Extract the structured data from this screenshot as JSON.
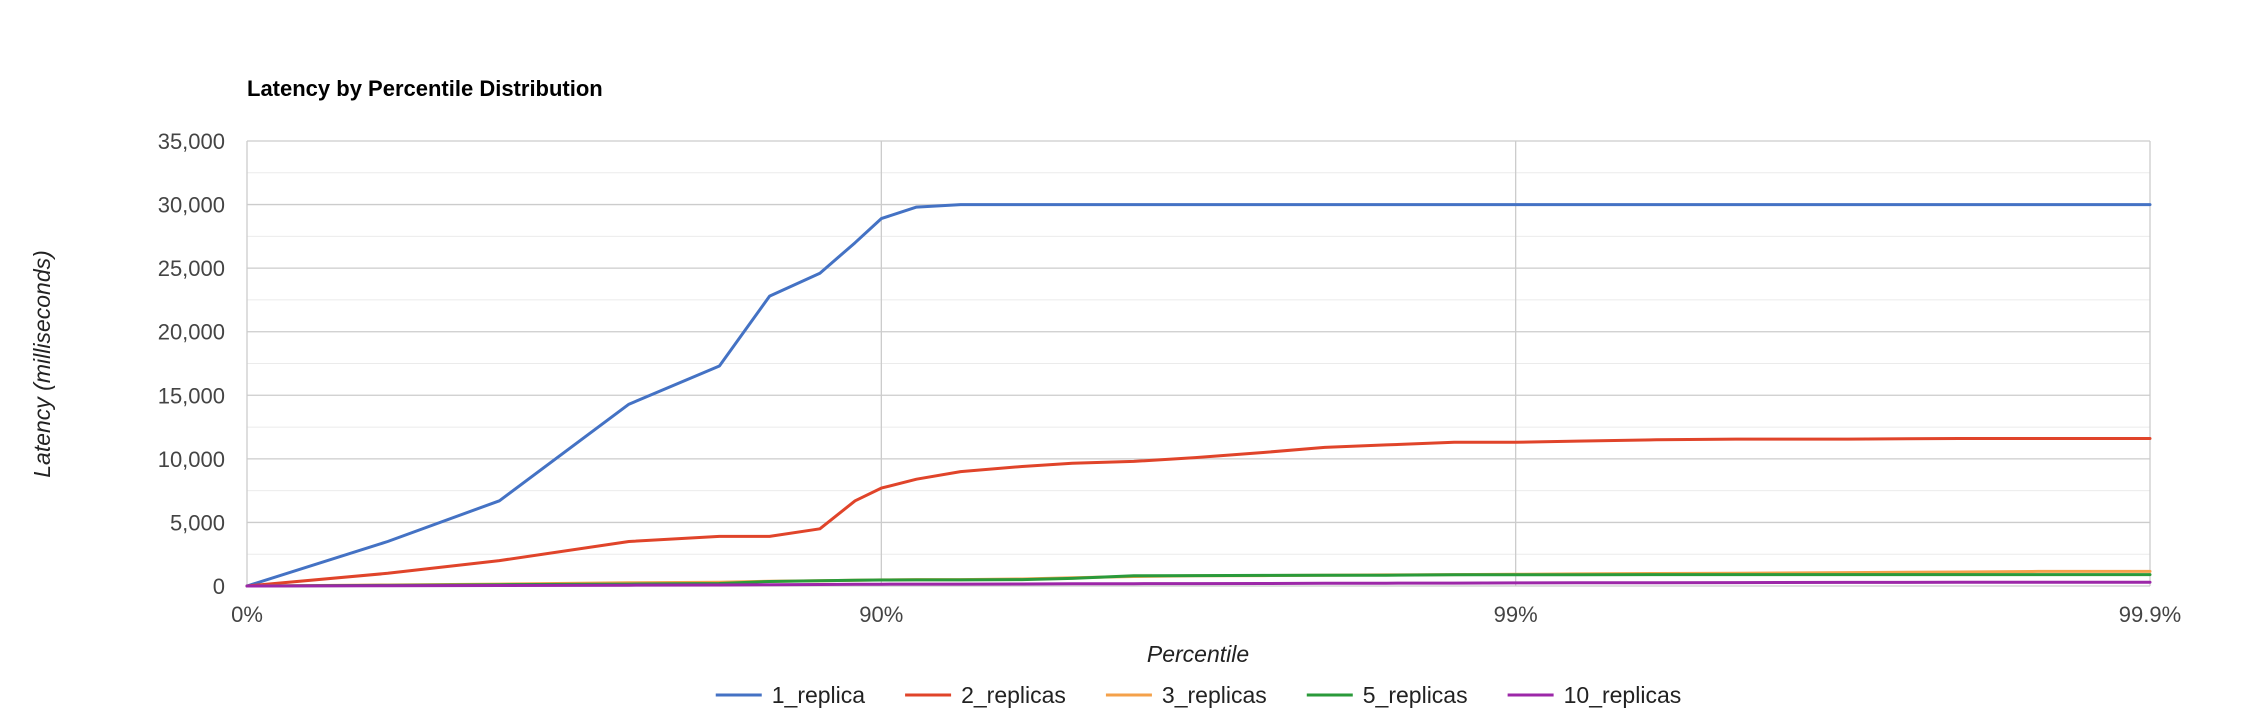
{
  "chart_data": {
    "type": "line",
    "title": "Latency by Percentile Distribution",
    "xlabel": "Percentile",
    "ylabel": "Latency (milliseconds)",
    "ylim": [
      0,
      35000
    ],
    "yticks": [
      "0",
      "5,000",
      "10,000",
      "15,000",
      "20,000",
      "25,000",
      "30,000",
      "35,000"
    ],
    "xscale": "log-percentile",
    "xlim": [
      0,
      99.9
    ],
    "xticks": [
      {
        "value": 0,
        "label": "0%"
      },
      {
        "value": 90,
        "label": "90%"
      },
      {
        "value": 99,
        "label": "99%"
      },
      {
        "value": 99.9,
        "label": "99.9%"
      }
    ],
    "grid": true,
    "legend": "bottom",
    "colors": {
      "1_replica": "#4472c4",
      "2_replicas": "#e0442a",
      "3_replicas": "#f4a14a",
      "5_replicas": "#2a9a3a",
      "10_replicas": "#9c27a8"
    },
    "x": [
      0,
      40,
      60,
      75,
      82,
      85,
      87.5,
      89,
      90,
      91.2,
      92.5,
      94,
      95,
      96,
      96.8,
      97.5,
      98,
      98.4,
      98.75,
      99,
      99.2,
      99.4,
      99.55,
      99.7,
      99.8,
      99.85,
      99.9
    ],
    "series": [
      {
        "name": "1_replica",
        "values": [
          0,
          3500,
          6700,
          14300,
          17300,
          22800,
          24600,
          27000,
          28900,
          29800,
          30000,
          30000,
          30000,
          30000,
          30000,
          30000,
          30000,
          30000,
          30000,
          30000,
          30000,
          30000,
          30000,
          30000,
          30000,
          30000,
          30000
        ]
      },
      {
        "name": "2_replicas",
        "values": [
          0,
          1000,
          2000,
          3500,
          3900,
          3900,
          4500,
          6700,
          7700,
          8400,
          9000,
          9400,
          9650,
          9800,
          10100,
          10500,
          10900,
          11100,
          11300,
          11300,
          11400,
          11500,
          11550,
          11550,
          11600,
          11600,
          11600
        ]
      },
      {
        "name": "3_replicas",
        "values": [
          0,
          80,
          150,
          250,
          300,
          380,
          420,
          450,
          480,
          500,
          500,
          550,
          650,
          750,
          800,
          820,
          850,
          870,
          900,
          920,
          950,
          980,
          1000,
          1050,
          1100,
          1150,
          1150
        ]
      },
      {
        "name": "5_replicas",
        "values": [
          0,
          50,
          100,
          150,
          200,
          350,
          420,
          450,
          470,
          480,
          480,
          500,
          600,
          800,
          820,
          830,
          840,
          850,
          880,
          880,
          880,
          900,
          900,
          900,
          900,
          900,
          900
        ]
      },
      {
        "name": "10_replicas",
        "values": [
          0,
          20,
          40,
          60,
          80,
          100,
          120,
          130,
          140,
          150,
          150,
          160,
          170,
          180,
          190,
          200,
          210,
          220,
          230,
          240,
          250,
          260,
          270,
          280,
          290,
          300,
          300
        ]
      }
    ]
  }
}
